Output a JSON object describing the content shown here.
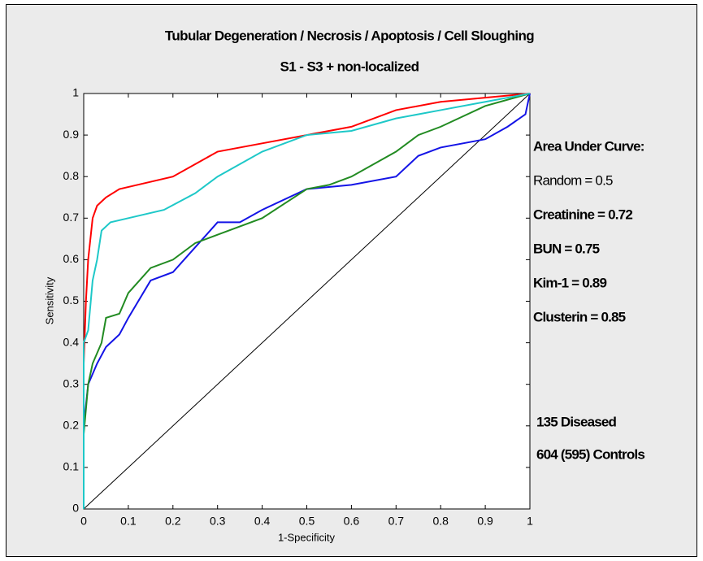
{
  "chart_data": {
    "type": "line",
    "title": "Tubular Degeneration / Necrosis / Apoptosis / Cell Sloughing",
    "subtitle": "S1 - S3 + non-localized",
    "x_label": "1-Specificity",
    "y_label": "Sensitivity",
    "legend_title": "Area Under Curve:",
    "annotations": [
      "135 Diseased",
      "604 (595) Controls"
    ],
    "xlim": [
      0,
      1
    ],
    "ylim": [
      0,
      1
    ],
    "xticks": [
      0,
      0.1,
      0.2,
      0.3,
      0.4,
      0.5,
      0.6,
      0.7,
      0.8,
      0.9,
      1
    ],
    "yticks": [
      0,
      0.1,
      0.2,
      0.3,
      0.4,
      0.5,
      0.6,
      0.7,
      0.8,
      0.9,
      1
    ],
    "series": [
      {
        "name": "Random = 0.5",
        "color": "#000000",
        "bold": false,
        "x": [
          0,
          1
        ],
        "values": [
          0,
          1
        ]
      },
      {
        "name": "Creatinine = 0.72",
        "color": "#1414e6",
        "bold": true,
        "x": [
          0,
          0,
          0.01,
          0.03,
          0.05,
          0.08,
          0.1,
          0.15,
          0.2,
          0.25,
          0.3,
          0.35,
          0.4,
          0.5,
          0.6,
          0.7,
          0.75,
          0.8,
          0.9,
          0.95,
          0.99,
          1
        ],
        "values": [
          0,
          0.2,
          0.3,
          0.35,
          0.39,
          0.42,
          0.46,
          0.55,
          0.57,
          0.63,
          0.69,
          0.69,
          0.72,
          0.77,
          0.78,
          0.8,
          0.85,
          0.87,
          0.89,
          0.92,
          0.95,
          1
        ]
      },
      {
        "name": "BUN = 0.75",
        "color": "#228b22",
        "bold": true,
        "x": [
          0,
          0,
          0.01,
          0.02,
          0.04,
          0.05,
          0.08,
          0.1,
          0.15,
          0.2,
          0.25,
          0.3,
          0.4,
          0.5,
          0.55,
          0.6,
          0.65,
          0.7,
          0.75,
          0.8,
          0.9,
          1
        ],
        "values": [
          0,
          0.18,
          0.3,
          0.35,
          0.4,
          0.46,
          0.47,
          0.52,
          0.58,
          0.6,
          0.64,
          0.66,
          0.7,
          0.77,
          0.78,
          0.8,
          0.83,
          0.86,
          0.9,
          0.92,
          0.97,
          1
        ]
      },
      {
        "name": "Kim-1 = 0.89",
        "color": "#ff0000",
        "bold": true,
        "x": [
          0,
          0,
          0.005,
          0.01,
          0.02,
          0.03,
          0.05,
          0.08,
          0.12,
          0.2,
          0.25,
          0.3,
          0.4,
          0.5,
          0.6,
          0.7,
          0.8,
          0.9,
          1
        ],
        "values": [
          0,
          0.35,
          0.5,
          0.6,
          0.7,
          0.73,
          0.75,
          0.77,
          0.78,
          0.8,
          0.83,
          0.86,
          0.88,
          0.9,
          0.92,
          0.96,
          0.98,
          0.99,
          1
        ]
      },
      {
        "name": "Clusterin = 0.85",
        "color": "#1ec8c8",
        "bold": true,
        "x": [
          0,
          0,
          0.01,
          0.02,
          0.03,
          0.04,
          0.06,
          0.1,
          0.18,
          0.25,
          0.3,
          0.4,
          0.5,
          0.6,
          0.7,
          0.8,
          0.9,
          1
        ],
        "values": [
          0,
          0.4,
          0.43,
          0.55,
          0.6,
          0.67,
          0.69,
          0.7,
          0.72,
          0.76,
          0.8,
          0.86,
          0.9,
          0.91,
          0.94,
          0.96,
          0.98,
          1
        ]
      }
    ]
  }
}
